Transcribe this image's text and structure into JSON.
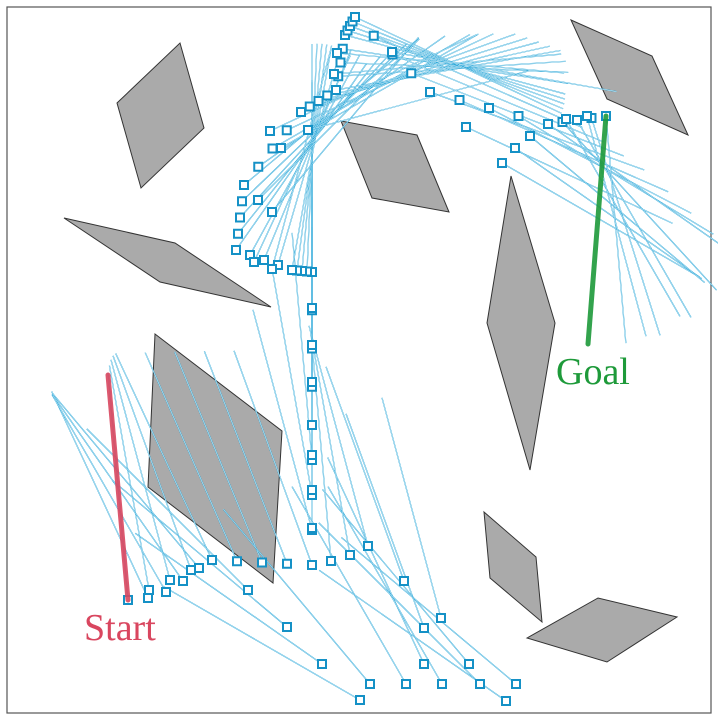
{
  "labels": {
    "start": "Start",
    "goal": "Goal"
  },
  "colors": {
    "start": "#d9465f",
    "goal": "#1e9a3a",
    "path": "#1ba1d6",
    "obstacle": "#aaaaaa"
  }
}
